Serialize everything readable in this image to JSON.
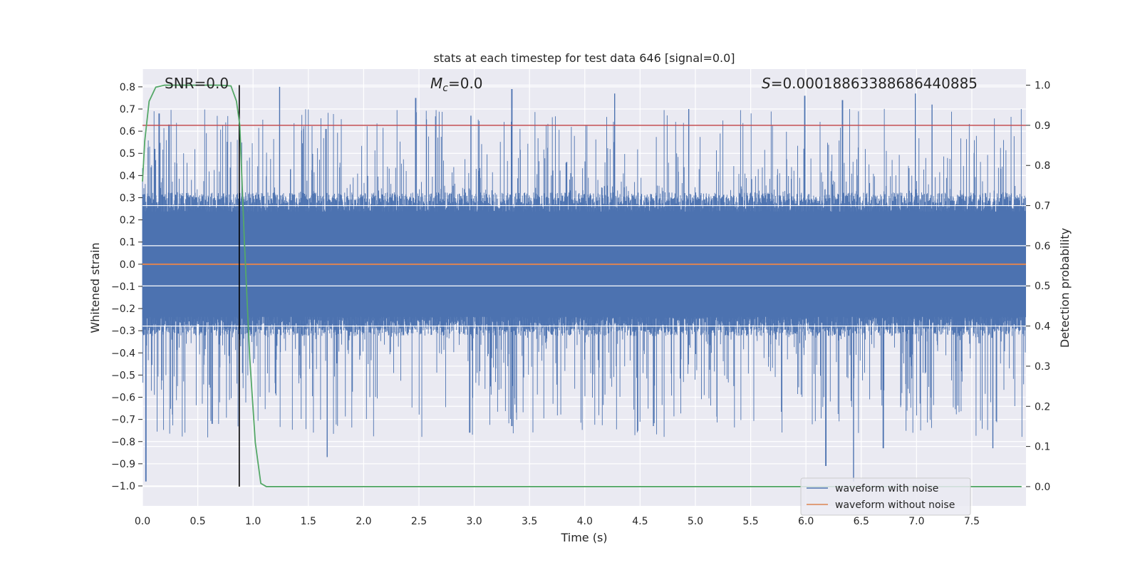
{
  "chart_data": {
    "type": "line",
    "title": "stats at each timestep for test data 646 [signal=0.0]",
    "xlabel": "Time (s)",
    "ylabel": "Whitened strain",
    "y2label": "Detection probability",
    "xlim": [
      0.0,
      7.99
    ],
    "ylim": [
      -1.09,
      0.88
    ],
    "y2lim": [
      -0.048,
      1.04
    ],
    "xticks": [
      0.0,
      0.5,
      1.0,
      1.5,
      2.0,
      2.5,
      3.0,
      3.5,
      4.0,
      4.5,
      5.0,
      5.5,
      6.0,
      6.5,
      7.0,
      7.5
    ],
    "xtick_labels": [
      "0.0",
      "0.5",
      "1.0",
      "1.5",
      "2.0",
      "2.5",
      "3.0",
      "3.5",
      "4.0",
      "4.5",
      "5.0",
      "5.5",
      "6.0",
      "6.5",
      "7.0",
      "7.5"
    ],
    "yticks": [
      0.8,
      0.7,
      0.6,
      0.5,
      0.4,
      0.3,
      0.2,
      0.1,
      0.0,
      -0.1,
      -0.2,
      -0.3,
      -0.4,
      -0.5,
      -0.6,
      -0.7,
      -0.8,
      -0.9,
      -1.0
    ],
    "ytick_labels": [
      "0.8",
      "0.7",
      "0.6",
      "0.5",
      "0.4",
      "0.3",
      "0.2",
      "0.1",
      "0.0",
      "−0.1",
      "−0.2",
      "−0.3",
      "−0.4",
      "−0.5",
      "−0.6",
      "−0.7",
      "−0.8",
      "−0.9",
      "−1.0"
    ],
    "y2ticks": [
      1.0,
      0.9,
      0.8,
      0.7,
      0.6,
      0.5,
      0.4,
      0.3,
      0.2,
      0.1,
      0.0
    ],
    "y2tick_labels": [
      "1.0",
      "0.9",
      "0.8",
      "0.7",
      "0.6",
      "0.5",
      "0.4",
      "0.3",
      "0.2",
      "0.1",
      "0.0"
    ],
    "annotations": {
      "snr": "SNR=0.0",
      "mc_symbol": "M",
      "mc_sub": "c",
      "mc_value": "=0.0",
      "s_symbol": "S",
      "s_value": "=0.00018863388686440885"
    },
    "threshold_y2": 0.9,
    "marker_x": 0.875,
    "series": [
      {
        "name": "waveform with noise",
        "color": "#4c72b0",
        "kind": "noise",
        "core_amplitude": 0.27,
        "max_peak": 0.8,
        "min_peak": -0.98,
        "tall_peaks": [
          [
            0.11,
            0.52
          ],
          [
            0.15,
            0.68
          ],
          [
            0.24,
            0.63
          ],
          [
            1.24,
            0.8
          ],
          [
            1.66,
            0.61
          ],
          [
            2.47,
            0.75
          ],
          [
            2.97,
            0.67
          ],
          [
            3.34,
            0.79
          ],
          [
            4.27,
            0.77
          ],
          [
            4.94,
            0.7
          ],
          [
            5.99,
            0.76
          ],
          [
            6.33,
            0.74
          ],
          [
            6.99,
            0.77
          ],
          [
            7.14,
            0.72
          ]
        ],
        "deep_troughs": [
          [
            0.03,
            -0.98
          ],
          [
            0.63,
            -0.72
          ],
          [
            1.67,
            -0.87
          ],
          [
            2.96,
            -0.76
          ],
          [
            3.34,
            -0.73
          ],
          [
            4.62,
            -0.73
          ],
          [
            6.18,
            -0.91
          ],
          [
            6.43,
            -0.98
          ],
          [
            6.7,
            -0.83
          ],
          [
            7.69,
            -0.83
          ]
        ]
      },
      {
        "name": "waveform without noise",
        "color": "#dd8452",
        "kind": "flat",
        "value": 0.0
      },
      {
        "name": "detection probability",
        "color": "#55a868",
        "axis": "right",
        "x": [
          0.0,
          0.02,
          0.06,
          0.12,
          0.2,
          0.3,
          0.5,
          0.7,
          0.8,
          0.85,
          0.88,
          0.92,
          0.97,
          1.02,
          1.07,
          1.12,
          1.2,
          1.5,
          2.0,
          3.0,
          4.0,
          5.0,
          6.0,
          7.0,
          7.95
        ],
        "y": [
          0.76,
          0.86,
          0.96,
          0.995,
          1.0,
          1.0,
          1.0,
          1.0,
          0.998,
          0.96,
          0.9,
          0.62,
          0.32,
          0.11,
          0.008,
          0.0,
          0.0,
          0.0,
          0.0,
          0.0,
          0.0,
          0.0,
          0.0,
          0.0,
          0.0
        ]
      },
      {
        "name": "threshold",
        "color": "#c44e52",
        "kind": "hline",
        "axis": "right",
        "value": 0.9
      }
    ],
    "legend": {
      "location": "lower-right",
      "entries": [
        "waveform with noise",
        "waveform without noise"
      ]
    }
  }
}
